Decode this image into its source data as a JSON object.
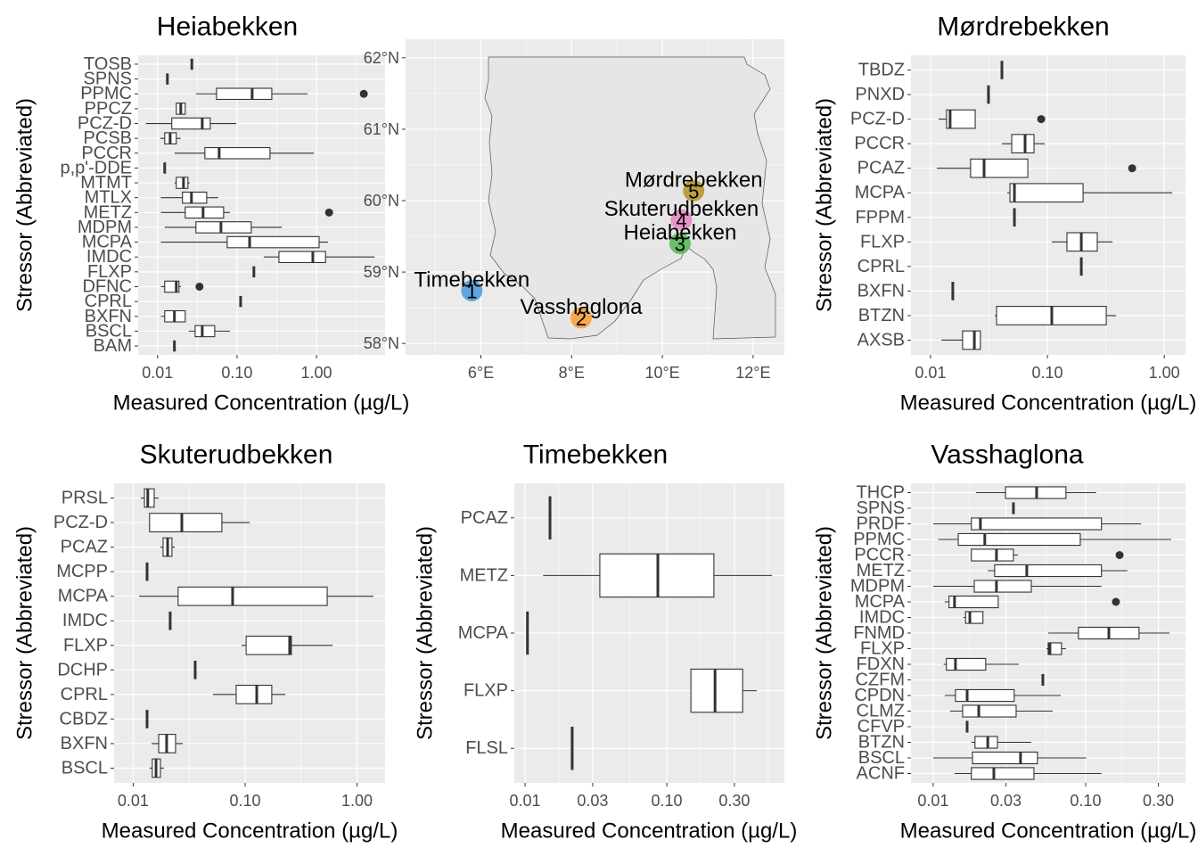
{
  "chart_data": [
    {
      "type": "box",
      "title": "Heiabekken",
      "x_label": "Measured Concentration (µg/L)",
      "y_label": "Stressor (Abbreviated)",
      "x_log": true,
      "xlim": [
        0.0057,
        7.3
      ],
      "xticks": [
        0.01,
        {
          "value": 0.1,
          "label": "0.10"
        },
        {
          "value": 1,
          "label": "1.00"
        }
      ],
      "categories": [
        "TOSB",
        "SPNS",
        "PPMC",
        "PPCZ",
        "PCZ-D",
        "PCSB",
        "PCCR",
        "p,p'-DDE",
        "MTMT",
        "MTLX",
        "METZ",
        "MDPM",
        "MCPA",
        "IMDC",
        "FLXP",
        "DFNC",
        "CPRL",
        "BXFN",
        "BSCL",
        "BAM"
      ],
      "boxes": [
        {
          "min": 0.027,
          "q1": 0.027,
          "median": 0.027,
          "q3": 0.027,
          "max": 0.027
        },
        {
          "min": 0.0133,
          "q1": 0.0133,
          "median": 0.0133,
          "q3": 0.0133,
          "max": 0.0133
        },
        {
          "min": 0.0304,
          "q1": 0.0552,
          "median": 0.155,
          "q3": 0.274,
          "max": 0.77,
          "outliers": [
            3.94
          ]
        },
        {
          "min": 0.0172,
          "q1": 0.0172,
          "median": 0.0196,
          "q3": 0.0223,
          "max": 0.0223
        },
        {
          "min": 0.0071,
          "q1": 0.0151,
          "median": 0.0365,
          "q3": 0.046,
          "max": 0.098
        },
        {
          "min": 0.0108,
          "q1": 0.0123,
          "median": 0.0144,
          "q3": 0.0172,
          "max": 0.0196
        },
        {
          "min": 0.0163,
          "q1": 0.0394,
          "median": 0.0596,
          "q3": 0.26,
          "max": 0.93
        },
        {
          "min": 0.0123,
          "q1": 0.0123,
          "median": 0.0123,
          "q3": 0.0123,
          "max": 0.0123
        },
        {
          "min": 0.0163,
          "q1": 0.0172,
          "median": 0.0212,
          "q3": 0.0241,
          "max": 0.0254
        },
        {
          "min": 0.011,
          "q1": 0.0206,
          "median": 0.0267,
          "q3": 0.0415,
          "max": 0.058
        },
        {
          "min": 0.011,
          "q1": 0.0223,
          "median": 0.0374,
          "q3": 0.0678,
          "max": 0.0813,
          "outliers": [
            1.44
          ]
        },
        {
          "min": 0.0123,
          "q1": 0.0304,
          "median": 0.0628,
          "q3": 0.151,
          "max": 0.365
        },
        {
          "min": 0.011,
          "q1": 0.0752,
          "median": 0.144,
          "q3": 1.08,
          "max": 1.4
        },
        {
          "min": 0.217,
          "q1": 0.337,
          "median": 0.9,
          "q3": 1.3,
          "max": 5.37
        },
        {
          "min": 0.163,
          "q1": 0.163,
          "median": 0.163,
          "q3": 0.163,
          "max": 0.163
        },
        {
          "min": 0.011,
          "q1": 0.0123,
          "median": 0.0172,
          "q3": 0.0186,
          "max": 0.0196,
          "outliers": [
            0.0337
          ]
        },
        {
          "min": 0.111,
          "q1": 0.111,
          "median": 0.111,
          "q3": 0.111,
          "max": 0.111
        },
        {
          "min": 0.011,
          "q1": 0.0123,
          "median": 0.0163,
          "q3": 0.0223,
          "max": 0.0223
        },
        {
          "min": 0.0247,
          "q1": 0.0297,
          "median": 0.0365,
          "q3": 0.0524,
          "max": 0.0813
        },
        {
          "min": 0.0163,
          "q1": 0.0163,
          "median": 0.0163,
          "q3": 0.0163,
          "max": 0.0163
        }
      ]
    },
    {
      "type": "map",
      "xlim": [
        4.34,
        12.69
      ],
      "ylim": [
        57.84,
        62.26
      ],
      "xticks": [
        {
          "value": 6,
          "label": "6°E"
        },
        {
          "value": 8,
          "label": "8°E"
        },
        {
          "value": 10,
          "label": "10°E"
        },
        {
          "value": 12,
          "label": "12°E"
        }
      ],
      "yticks": [
        {
          "value": 58,
          "label": "58°N"
        },
        {
          "value": 59,
          "label": "59°N"
        },
        {
          "value": 60,
          "label": "60°N"
        },
        {
          "value": 61,
          "label": "61°N"
        },
        {
          "value": 62,
          "label": "62°N"
        }
      ],
      "points": [
        {
          "id": 1,
          "name": "Timebekken",
          "lon": 5.8,
          "lat": 58.74,
          "color": "#4f9ee0"
        },
        {
          "id": 2,
          "name": "Vasshaglona",
          "lon": 8.21,
          "lat": 58.36,
          "color": "#f7a23c"
        },
        {
          "id": 3,
          "name": "Heiabekken",
          "lon": 10.39,
          "lat": 59.4,
          "color": "#5cb85c"
        },
        {
          "id": 4,
          "name": "Skuterudbekken",
          "lon": 10.42,
          "lat": 59.73,
          "color": "#e78ac3"
        },
        {
          "id": 5,
          "name": "Mørdrebekken",
          "lon": 10.69,
          "lat": 60.14,
          "color": "#b8962e"
        }
      ]
    },
    {
      "type": "box",
      "title": "Mørdrebekken",
      "x_label": "Measured Concentration (µg/L)",
      "y_label": "Stressor (Abbreviated)",
      "x_log": true,
      "xlim": [
        0.0068,
        1.52
      ],
      "xticks": [
        0.01,
        {
          "value": 0.1,
          "label": "0.10"
        },
        {
          "value": 1,
          "label": "1.00"
        }
      ],
      "categories": [
        "TBDZ",
        "PNXD",
        "PCZ-D",
        "PCCR",
        "PCAZ",
        "MCPA",
        "FPPM",
        "FLXP",
        "CPRL",
        "BXFN",
        "BTZN",
        "AXSB"
      ],
      "boxes": [
        {
          "min": 0.0408,
          "q1": 0.0408,
          "median": 0.0408,
          "q3": 0.0408,
          "max": 0.0408
        },
        {
          "min": 0.0313,
          "q1": 0.0313,
          "median": 0.0313,
          "q3": 0.0313,
          "max": 0.0313
        },
        {
          "min": 0.0117,
          "q1": 0.0137,
          "median": 0.0147,
          "q3": 0.0241,
          "max": 0.0241,
          "outliers": [
            0.0885
          ]
        },
        {
          "min": 0.0408,
          "q1": 0.0495,
          "median": 0.0644,
          "q3": 0.0768,
          "max": 0.095
        },
        {
          "min": 0.0113,
          "q1": 0.022,
          "median": 0.0287,
          "q3": 0.068,
          "max": 0.068,
          "outliers": [
            0.531
          ]
        },
        {
          "min": 0.0453,
          "q1": 0.0478,
          "median": 0.0522,
          "q3": 0.202,
          "max": 1.17
        },
        {
          "min": 0.0522,
          "q1": 0.0522,
          "median": 0.0522,
          "q3": 0.0522,
          "max": 0.0522
        },
        {
          "min": 0.109,
          "q1": 0.147,
          "median": 0.195,
          "q3": 0.267,
          "max": 0.361
        },
        {
          "min": 0.195,
          "q1": 0.195,
          "median": 0.195,
          "q3": 0.195,
          "max": 0.195
        },
        {
          "min": 0.0155,
          "q1": 0.0155,
          "median": 0.0155,
          "q3": 0.0155,
          "max": 0.0155
        },
        {
          "min": 0.0355,
          "q1": 0.0367,
          "median": 0.109,
          "q3": 0.319,
          "max": 0.387
        },
        {
          "min": 0.0124,
          "q1": 0.0188,
          "median": 0.0237,
          "q3": 0.0267,
          "max": 0.0267
        }
      ]
    },
    {
      "type": "box",
      "title": "Skuterudbekken",
      "x_label": "Measured Concentration (µg/L)",
      "y_label": "Stressor (Abbreviated)",
      "x_log": true,
      "xlim": [
        0.00675,
        1.78
      ],
      "xticks": [
        0.01,
        {
          "value": 0.1,
          "label": "0.10"
        },
        {
          "value": 1,
          "label": "1.00"
        }
      ],
      "categories": [
        "PRSL",
        "PCZ-D",
        "PCAZ",
        "MCPP",
        "MCPA",
        "IMDC",
        "FLXP",
        "DCHP",
        "CPRL",
        "CBDZ",
        "BXFN",
        "BSCL"
      ],
      "boxes": [
        {
          "min": 0.0117,
          "q1": 0.0126,
          "median": 0.0135,
          "q3": 0.0154,
          "max": 0.0169
        },
        {
          "min": 0.014,
          "q1": 0.014,
          "median": 0.0272,
          "q3": 0.062,
          "max": 0.11
        },
        {
          "min": 0.0175,
          "q1": 0.0185,
          "median": 0.0203,
          "q3": 0.0222,
          "max": 0.0235
        },
        {
          "min": 0.0133,
          "q1": 0.0133,
          "median": 0.0133,
          "q3": 0.0133,
          "max": 0.0133
        },
        {
          "min": 0.0113,
          "q1": 0.0252,
          "median": 0.0773,
          "q3": 0.541,
          "max": 1.4
        },
        {
          "min": 0.0214,
          "q1": 0.0214,
          "median": 0.0214,
          "q3": 0.0214,
          "max": 0.0214
        },
        {
          "min": 0.0929,
          "q1": 0.102,
          "median": 0.25,
          "q3": 0.259,
          "max": 0.604
        },
        {
          "min": 0.0358,
          "q1": 0.0358,
          "median": 0.0358,
          "q3": 0.0358,
          "max": 0.0358
        },
        {
          "min": 0.0516,
          "q1": 0.0832,
          "median": 0.127,
          "q3": 0.173,
          "max": 0.229
        },
        {
          "min": 0.0133,
          "q1": 0.0133,
          "median": 0.0133,
          "q3": 0.0133,
          "max": 0.0133
        },
        {
          "min": 0.0146,
          "q1": 0.0169,
          "median": 0.0199,
          "q3": 0.0239,
          "max": 0.0277
        },
        {
          "min": 0.014,
          "q1": 0.0148,
          "median": 0.016,
          "q3": 0.0175,
          "max": 0.0188
        }
      ]
    },
    {
      "type": "box",
      "title": "Timebekken",
      "x_label": "Measured Concentration (µg/L)",
      "y_label": "Stressor (Abbreviated)",
      "x_log": true,
      "xlim": [
        0.0084,
        0.676
      ],
      "xticks": [
        0.01,
        0.03,
        {
          "value": 0.1,
          "label": "0.10"
        },
        {
          "value": 0.3,
          "label": "0.30"
        }
      ],
      "categories": [
        "PCAZ",
        "METZ",
        "MCPA",
        "FLXP",
        "FLSL"
      ],
      "boxes": [
        {
          "min": 0.015,
          "q1": 0.015,
          "median": 0.015,
          "q3": 0.015,
          "max": 0.015
        },
        {
          "min": 0.0134,
          "q1": 0.0337,
          "median": 0.0865,
          "q3": 0.215,
          "max": 0.552
        },
        {
          "min": 0.0104,
          "q1": 0.0104,
          "median": 0.0104,
          "q3": 0.0104,
          "max": 0.0104
        },
        {
          "min": 0.148,
          "q1": 0.148,
          "median": 0.219,
          "q3": 0.343,
          "max": 0.432
        },
        {
          "min": 0.0215,
          "q1": 0.0215,
          "median": 0.0215,
          "q3": 0.0215,
          "max": 0.0215
        }
      ]
    },
    {
      "type": "box",
      "title": "Vasshaglona",
      "x_label": "Measured Concentration (µg/L)",
      "y_label": "Stressor (Abbreviated)",
      "x_log": true,
      "xlim": [
        0.00715,
        0.452
      ],
      "xticks": [
        0.01,
        0.03,
        {
          "value": 0.1,
          "label": "0.10"
        },
        {
          "value": 0.3,
          "label": "0.30"
        }
      ],
      "categories": [
        "THCP",
        "SPNS",
        "PRDF",
        "PPMC",
        "PCCR",
        "METZ",
        "MDPM",
        "MCPA",
        "IMDC",
        "FNMD",
        "FLXP",
        "FDXN",
        "CZFM",
        "CPDN",
        "CLMZ",
        "CFVP",
        "BTZN",
        "BSCL",
        "ACNF"
      ],
      "boxes": [
        {
          "min": 0.0191,
          "q1": 0.0298,
          "median": 0.0477,
          "q3": 0.0743,
          "max": 0.117
        },
        {
          "min": 0.0336,
          "q1": 0.0336,
          "median": 0.0336,
          "q3": 0.0336,
          "max": 0.0336
        },
        {
          "min": 0.01,
          "q1": 0.0178,
          "median": 0.0204,
          "q3": 0.127,
          "max": 0.231
        },
        {
          "min": 0.0108,
          "q1": 0.0146,
          "median": 0.0218,
          "q3": 0.0922,
          "max": 0.364
        },
        {
          "min": 0.0176,
          "q1": 0.0178,
          "median": 0.026,
          "q3": 0.0336,
          "max": 0.036,
          "outliers": [
            0.167
          ]
        },
        {
          "min": 0.0228,
          "q1": 0.0253,
          "median": 0.0411,
          "q3": 0.127,
          "max": 0.188
        },
        {
          "min": 0.01,
          "q1": 0.0186,
          "median": 0.026,
          "q3": 0.044,
          "max": 0.127
        },
        {
          "min": 0.0119,
          "q1": 0.0127,
          "median": 0.0138,
          "q3": 0.0267,
          "max": 0.0267,
          "outliers": [
            0.158
          ]
        },
        {
          "min": 0.0158,
          "q1": 0.0163,
          "median": 0.0174,
          "q3": 0.0212,
          "max": 0.0212
        },
        {
          "min": 0.0568,
          "q1": 0.0897,
          "median": 0.142,
          "q3": 0.224,
          "max": 0.355
        },
        {
          "min": 0.0553,
          "q1": 0.0568,
          "median": 0.0583,
          "q3": 0.0695,
          "max": 0.0743
        },
        {
          "min": 0.0117,
          "q1": 0.0122,
          "median": 0.014,
          "q3": 0.0221,
          "max": 0.0364
        },
        {
          "min": 0.0524,
          "q1": 0.0524,
          "median": 0.0524,
          "q3": 0.0524,
          "max": 0.0524
        },
        {
          "min": 0.0119,
          "q1": 0.014,
          "median": 0.0167,
          "q3": 0.034,
          "max": 0.0686
        },
        {
          "min": 0.0129,
          "q1": 0.0156,
          "median": 0.0199,
          "q3": 0.035,
          "max": 0.0608
        },
        {
          "min": 0.0167,
          "q1": 0.0167,
          "median": 0.0167,
          "q3": 0.0167,
          "max": 0.0167
        },
        {
          "min": 0.0178,
          "q1": 0.0188,
          "median": 0.0228,
          "q3": 0.0264,
          "max": 0.044
        },
        {
          "min": 0.01,
          "q1": 0.0181,
          "median": 0.0374,
          "q3": 0.0483,
          "max": 0.101
        },
        {
          "min": 0.0138,
          "q1": 0.0178,
          "median": 0.025,
          "q3": 0.0458,
          "max": 0.127
        }
      ]
    }
  ]
}
